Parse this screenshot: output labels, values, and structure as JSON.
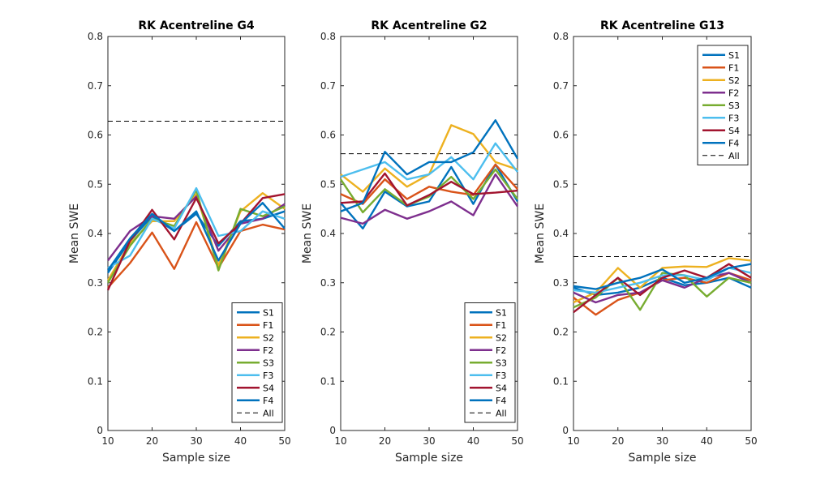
{
  "colors": {
    "S1": "#0072bd",
    "F1": "#d95319",
    "S2": "#edb120",
    "F2": "#7e2f8e",
    "S3": "#77ac30",
    "F3": "#4dbeee",
    "S4": "#a2142f",
    "F4": "#0072bd",
    "All": "#000000"
  },
  "chart_data": [
    {
      "type": "line",
      "title": "RK Acentreline G4",
      "xlabel": "Sample size",
      "ylabel": "Mean SWE",
      "xlim": [
        10,
        50
      ],
      "ylim": [
        0,
        0.8
      ],
      "xticks": [
        "10",
        "20",
        "30",
        "40",
        "50"
      ],
      "yticks": [
        "0",
        "0.1",
        "0.2",
        "0.3",
        "0.4",
        "0.5",
        "0.6",
        "0.7",
        "0.8"
      ],
      "legend_position": "bottom-right",
      "x": [
        10,
        15,
        20,
        25,
        30,
        35,
        40,
        45,
        50
      ],
      "series": [
        {
          "name": "S1",
          "values": [
            0.32,
            0.385,
            0.435,
            0.405,
            0.44,
            0.375,
            0.425,
            0.43,
            0.445
          ]
        },
        {
          "name": "F1",
          "values": [
            0.29,
            0.34,
            0.402,
            0.328,
            0.423,
            0.33,
            0.405,
            0.418,
            0.408
          ]
        },
        {
          "name": "S2",
          "values": [
            0.305,
            0.38,
            0.425,
            0.425,
            0.48,
            0.335,
            0.445,
            0.482,
            0.45
          ]
        },
        {
          "name": "F2",
          "values": [
            0.345,
            0.405,
            0.435,
            0.43,
            0.475,
            0.365,
            0.42,
            0.43,
            0.46
          ]
        },
        {
          "name": "S3",
          "values": [
            0.3,
            0.375,
            0.43,
            0.415,
            0.488,
            0.325,
            0.45,
            0.435,
            0.455
          ]
        },
        {
          "name": "F3",
          "values": [
            0.33,
            0.355,
            0.43,
            0.41,
            0.492,
            0.395,
            0.405,
            0.445,
            0.43
          ]
        },
        {
          "name": "S4",
          "values": [
            0.285,
            0.385,
            0.448,
            0.388,
            0.472,
            0.38,
            0.42,
            0.472,
            0.48
          ]
        },
        {
          "name": "F4",
          "values": [
            0.325,
            0.39,
            0.44,
            0.405,
            0.445,
            0.345,
            0.42,
            0.462,
            0.41
          ]
        }
      ],
      "reference": {
        "name": "All",
        "value": 0.628
      }
    },
    {
      "type": "line",
      "title": "RK Acentreline G2",
      "xlabel": "Sample size",
      "ylabel": "Mean SWE",
      "xlim": [
        10,
        50
      ],
      "ylim": [
        0,
        0.8
      ],
      "xticks": [
        "10",
        "20",
        "30",
        "40",
        "50"
      ],
      "yticks": [
        "0",
        "0.1",
        "0.2",
        "0.3",
        "0.4",
        "0.5",
        "0.6",
        "0.7",
        "0.8"
      ],
      "legend_position": "bottom-right",
      "x": [
        10,
        15,
        20,
        25,
        30,
        35,
        40,
        45,
        50
      ],
      "series": [
        {
          "name": "S1",
          "values": [
            0.462,
            0.41,
            0.485,
            0.455,
            0.465,
            0.535,
            0.46,
            0.54,
            0.465
          ]
        },
        {
          "name": "F1",
          "values": [
            0.48,
            0.46,
            0.51,
            0.47,
            0.495,
            0.485,
            0.478,
            0.54,
            0.49
          ]
        },
        {
          "name": "S2",
          "values": [
            0.52,
            0.485,
            0.532,
            0.495,
            0.52,
            0.62,
            0.602,
            0.545,
            0.53
          ]
        },
        {
          "name": "F2",
          "values": [
            0.432,
            0.42,
            0.448,
            0.43,
            0.445,
            0.465,
            0.437,
            0.52,
            0.455
          ]
        },
        {
          "name": "S3",
          "values": [
            0.51,
            0.443,
            0.49,
            0.457,
            0.475,
            0.515,
            0.47,
            0.53,
            0.47
          ]
        },
        {
          "name": "F3",
          "values": [
            0.515,
            0.53,
            0.545,
            0.51,
            0.52,
            0.555,
            0.51,
            0.583,
            0.525
          ]
        },
        {
          "name": "S4",
          "values": [
            0.462,
            0.465,
            0.522,
            0.457,
            0.478,
            0.505,
            0.48,
            0.483,
            0.487
          ]
        },
        {
          "name": "F4",
          "values": [
            0.445,
            0.462,
            0.566,
            0.52,
            0.545,
            0.545,
            0.565,
            0.63,
            0.552
          ]
        }
      ],
      "reference": {
        "name": "All",
        "value": 0.562
      }
    },
    {
      "type": "line",
      "title": "RK Acentreline G13",
      "xlabel": "Sample size",
      "ylabel": "Mean SWE",
      "xlim": [
        10,
        50
      ],
      "ylim": [
        0,
        0.8
      ],
      "xticks": [
        "10",
        "20",
        "30",
        "40",
        "50"
      ],
      "yticks": [
        "0",
        "0.1",
        "0.2",
        "0.3",
        "0.4",
        "0.5",
        "0.6",
        "0.7",
        "0.8"
      ],
      "legend_position": "top-right",
      "x": [
        10,
        15,
        20,
        25,
        30,
        35,
        40,
        45,
        50
      ],
      "series": [
        {
          "name": "S1",
          "values": [
            0.29,
            0.275,
            0.28,
            0.29,
            0.31,
            0.295,
            0.3,
            0.31,
            0.29
          ]
        },
        {
          "name": "F1",
          "values": [
            0.27,
            0.235,
            0.265,
            0.28,
            0.305,
            0.31,
            0.3,
            0.32,
            0.305
          ]
        },
        {
          "name": "S2",
          "values": [
            0.26,
            0.28,
            0.33,
            0.29,
            0.33,
            0.333,
            0.332,
            0.35,
            0.345
          ]
        },
        {
          "name": "F2",
          "values": [
            0.28,
            0.26,
            0.275,
            0.28,
            0.305,
            0.29,
            0.31,
            0.32,
            0.3
          ]
        },
        {
          "name": "S3",
          "values": [
            0.25,
            0.27,
            0.31,
            0.245,
            0.32,
            0.315,
            0.272,
            0.31,
            0.3
          ]
        },
        {
          "name": "F3",
          "values": [
            0.285,
            0.28,
            0.29,
            0.3,
            0.315,
            0.315,
            0.305,
            0.33,
            0.32
          ]
        },
        {
          "name": "S4",
          "values": [
            0.24,
            0.275,
            0.31,
            0.275,
            0.31,
            0.325,
            0.31,
            0.338,
            0.31
          ]
        },
        {
          "name": "F4",
          "values": [
            0.293,
            0.287,
            0.3,
            0.31,
            0.327,
            0.3,
            0.31,
            0.33,
            0.338
          ]
        }
      ],
      "reference": {
        "name": "All",
        "value": 0.353
      }
    }
  ]
}
